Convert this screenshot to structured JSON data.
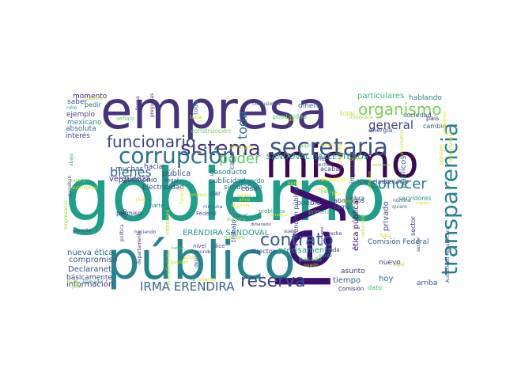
{
  "words": [
    {
      "text": "gobierno",
      "color": "#1f9e89"
    },
    {
      "text": "empresa",
      "color": "#46327e"
    },
    {
      "text": "público",
      "color": "#25848e"
    },
    {
      "text": "ley",
      "color": "#3b0f70"
    },
    {
      "text": "mismo",
      "color": "#3e0751"
    },
    {
      "text": "transparencia",
      "color": "#26828e"
    },
    {
      "text": "secretaria",
      "color": "#3b528b"
    },
    {
      "text": "sistema",
      "color": "#46337e"
    },
    {
      "text": "corrupción",
      "color": "#2c728e"
    },
    {
      "text": "funcionario",
      "color": "#3f4889"
    },
    {
      "text": "organismo",
      "color": "#7ad151"
    },
    {
      "text": "contrato",
      "color": "#365c8d"
    },
    {
      "text": "reserva",
      "color": "#3e4a89"
    },
    {
      "text": "bienes",
      "color": "#31688e"
    },
    {
      "text": "poder",
      "color": "#5ec962"
    },
    {
      "text": "conocer",
      "color": "#2a788e"
    },
    {
      "text": "general",
      "color": "#424086"
    },
    {
      "text": "toda",
      "color": "#2c718e"
    },
    {
      "text": "IRMA ERÉNDIRA",
      "color": "#32658e"
    },
    {
      "text": "ERÉNDIRA SANDOVAL",
      "color": "#20928c"
    },
    {
      "text": "SANDOVAL BALLESTEROS",
      "color": "#20a386"
    },
    {
      "text": "ética pública",
      "color": "#440154"
    },
    {
      "text": "Comisión Federal",
      "color": "#365d8d"
    },
    {
      "text": "nueva ética",
      "color": "#31688e"
    },
    {
      "text": "compromiso",
      "color": "#39568c"
    },
    {
      "text": "Declaranet",
      "color": "#3b518b"
    },
    {
      "text": "básicamente",
      "color": "#404588"
    },
    {
      "text": "información",
      "color": "#443a83"
    },
    {
      "text": "particulares",
      "color": "#35b779"
    },
    {
      "text": "hablando",
      "color": "#287d8e"
    },
    {
      "text": "dinero",
      "color": "#34608d"
    },
    {
      "text": "momento",
      "color": "#482475"
    },
    {
      "text": "saber",
      "color": "#3b528b"
    },
    {
      "text": "pedir",
      "color": "#31688e"
    },
    {
      "text": "robo",
      "color": "#22a785"
    },
    {
      "text": "ejemplo",
      "color": "#433e85"
    },
    {
      "text": "mexicano",
      "color": "#20938c"
    },
    {
      "text": "absoluta",
      "color": "#2d708e"
    },
    {
      "text": "interés",
      "color": "#3f4788"
    },
    {
      "text": "vergüenza",
      "color": "#482878"
    },
    {
      "text": "hacia",
      "color": "#443983"
    },
    {
      "text": "muchas",
      "color": "#39558c"
    },
    {
      "text": "pública",
      "color": "#3e4989"
    },
    {
      "text": "patrimonio",
      "color": "#3c4f8a"
    },
    {
      "text": "Electricidad",
      "color": "#404688"
    },
    {
      "text": "gasoducto",
      "color": "#287c8e"
    },
    {
      "text": "publicidad",
      "color": "#2e6e8e"
    },
    {
      "text": "simulación",
      "color": "#2b748e"
    },
    {
      "text": "acuerdo",
      "color": "#2a778e"
    },
    {
      "text": "respecto",
      "color": "#fde725"
    },
    {
      "text": "licenciado",
      "color": "#38588c"
    },
    {
      "text": "servicio",
      "color": "#3d4d8a"
    },
    {
      "text": "asunto",
      "color": "#472d7b"
    },
    {
      "text": "privado",
      "color": "#3a538b"
    },
    {
      "text": "públicos",
      "color": "#2c738e"
    },
    {
      "text": "servidores",
      "color": "#1fa088"
    },
    {
      "text": "pueblo",
      "color": "#3b528b"
    },
    {
      "text": "precisamente",
      "color": "#20a486"
    },
    {
      "text": "abogados",
      "color": "#453882"
    },
    {
      "text": "tiempo",
      "color": "#34618d"
    },
    {
      "text": "hoy",
      "color": "#2e6f8e"
    },
    {
      "text": "arriba",
      "color": "#3d4e8a"
    },
    {
      "text": "nuevo",
      "color": "#46307e"
    },
    {
      "text": "pasado",
      "color": "#52c569"
    },
    {
      "text": "dato",
      "color": "#48c16e"
    },
    {
      "text": "Comisión",
      "color": "#482475"
    },
    {
      "text": "terna",
      "color": "#3e4a89"
    },
    {
      "text": "obra",
      "color": "#365c8d"
    },
    {
      "text": "permiso",
      "color": "#482576"
    },
    {
      "text": "dar",
      "color": "#3b528b"
    },
    {
      "text": "cosa",
      "color": "#375a8c"
    },
    {
      "text": "director",
      "color": "#3e4989"
    },
    {
      "text": "trabajo",
      "color": "#3f4788"
    },
    {
      "text": "Función pública",
      "color": "#3e4a89"
    },
    {
      "text": "problema",
      "color": "#26ad81"
    },
    {
      "text": "primera",
      "color": "#4ac16d"
    },
    {
      "text": "nivel",
      "color": "#433e85"
    },
    {
      "text": "mundo",
      "color": "#404588"
    },
    {
      "text": "dice",
      "color": "#3f4788"
    },
    {
      "text": "duda",
      "color": "#482878"
    },
    {
      "text": "parte",
      "color": "#2a778e"
    },
    {
      "text": "sólo",
      "color": "#3d4d8a"
    },
    {
      "text": "posibilidad",
      "color": "#5ec962"
    },
    {
      "text": "construcción",
      "color": "#6ccd5a"
    },
    {
      "text": "toda",
      "color": "#2c718e"
    },
    {
      "text": "país",
      "color": "#472f7d"
    },
    {
      "text": "sociedad",
      "color": "#3c508b"
    },
    {
      "text": "cambio",
      "color": "#39568c"
    },
    {
      "text": "energía",
      "color": "#3d4e8a"
    },
    {
      "text": "total",
      "color": "#b8de29"
    },
    {
      "text": "caso",
      "color": "#3b528b"
    },
    {
      "text": "bien",
      "color": "#3f4788"
    },
    {
      "text": "acabar",
      "color": "#3f4889"
    },
    {
      "text": "hecho",
      "color": "#3a548c"
    },
    {
      "text": "impuesto",
      "color": "#3c4f8a"
    },
    {
      "text": "sector",
      "color": "#472a7a"
    },
    {
      "text": "señala",
      "color": "#6ece58"
    },
    {
      "text": "preguntas",
      "color": "#481f70"
    },
    {
      "text": "forma",
      "color": "#46337f"
    },
    {
      "text": "confusiones",
      "color": "#38598c"
    },
    {
      "text": "ilegal",
      "color": "#3f4788"
    },
    {
      "text": "Federal",
      "color": "#3b518b"
    },
    {
      "text": "ninguna",
      "color": "#2e6d8e"
    },
    {
      "text": "nombre",
      "color": "#8fd744"
    },
    {
      "text": "manera",
      "color": "#5cc863"
    },
    {
      "text": "suelo",
      "color": "#46337e"
    },
    {
      "text": "derecho",
      "color": "#482374"
    },
    {
      "text": "permite",
      "color": "#3d4d8a"
    },
    {
      "text": "haciendo",
      "color": "#3a548c"
    },
    {
      "text": "departamento",
      "color": "#472e7c"
    },
    {
      "text": "política",
      "color": "#3e4c8a"
    },
    {
      "text": "llamado",
      "color": "#26828e"
    },
    {
      "text": "debe",
      "color": "#a2da37"
    },
    {
      "text": "peso",
      "color": "#9bd93c"
    },
    {
      "text": "Austeridad Republicana",
      "color": "#3e4989"
    },
    {
      "text": "nómina",
      "color": "#3b528b"
    },
    {
      "text": "quiero",
      "color": "#2a768e"
    },
    {
      "text": "legal",
      "color": "#b5de2b"
    },
    {
      "text": "gente",
      "color": "#25ab82"
    },
    {
      "text": "puedo",
      "color": "#b8de29"
    },
    {
      "text": "corrupto",
      "color": "#453581"
    },
    {
      "text": "dimensión",
      "color": "#482878"
    },
    {
      "text": "dejar",
      "color": "#3f4889"
    },
    {
      "text": "hablar",
      "color": "#4ec36b"
    },
    {
      "text": "pagaban",
      "color": "#3e4a89"
    },
    {
      "text": "abajo",
      "color": "#2fb47c"
    },
    {
      "text": "nunca",
      "color": "#60ca60"
    },
    {
      "text": "empresarios",
      "color": "#9dd93b"
    },
    {
      "text": "hemos",
      "color": "#5ec962"
    },
    {
      "text": "cárcel",
      "color": "#2d708e"
    },
    {
      "text": "sector",
      "color": "#3e4989"
    },
    {
      "text": "falta",
      "color": "#d8e219"
    },
    {
      "text": "puedan",
      "color": "#c5e021"
    },
    {
      "text": "reducción",
      "color": "#b2dd2d"
    },
    {
      "text": "aquí",
      "color": "#6ccd5a"
    },
    {
      "text": "interviene",
      "color": "#a8db34"
    },
    {
      "text": "procedimiento",
      "color": "#bddf26"
    },
    {
      "text": "ahora",
      "color": "#cde11d"
    },
    {
      "text": "años",
      "color": "#dde318"
    },
    {
      "text": "algunos",
      "color": "#e7e419"
    },
    {
      "text": "temporal",
      "color": "#d2e21b"
    },
    {
      "text": "José",
      "color": "#e5e419"
    },
    {
      "text": "pagando",
      "color": "#c2df23"
    },
    {
      "text": "tipo",
      "color": "#f1e51d"
    },
    {
      "text": "autónomos",
      "color": "#cde11d"
    },
    {
      "text": "intereses",
      "color": "#b0dd2f"
    },
    {
      "text": "extranjero",
      "color": "#c0df25"
    },
    {
      "text": "tratar",
      "color": "#d5e21a"
    },
    {
      "text": "cerca",
      "color": "#fde725"
    },
    {
      "text": "prensa",
      "color": "#e2e418"
    },
    {
      "text": "verdad",
      "color": "#dae319"
    },
    {
      "text": "evento",
      "color": "#e0e318"
    },
    {
      "text": "funcionarios",
      "color": "#b5de2b"
    },
    {
      "text": "principio",
      "color": "#cae11f"
    },
    {
      "text": "gobiernos",
      "color": "#eae51a"
    },
    {
      "text": "transparente",
      "color": "#c8e020"
    },
    {
      "text": "corruptos",
      "color": "#bade28"
    },
    {
      "text": "compras",
      "color": "#d0e11c"
    },
    {
      "text": "hacerlo",
      "color": "#e4e419"
    },
    {
      "text": "podemos",
      "color": "#a5db36"
    },
    {
      "text": "todos",
      "color": "#b8de29"
    },
    {
      "text": "manos",
      "color": "#dde318"
    },
    {
      "text": "escuchar",
      "color": "#cde11d"
    },
    {
      "text": "apoyo",
      "color": "#f4e61e"
    },
    {
      "text": "lugar",
      "color": "#e7e419"
    },
    {
      "text": "actos",
      "color": "#d2e21b"
    }
  ]
}
